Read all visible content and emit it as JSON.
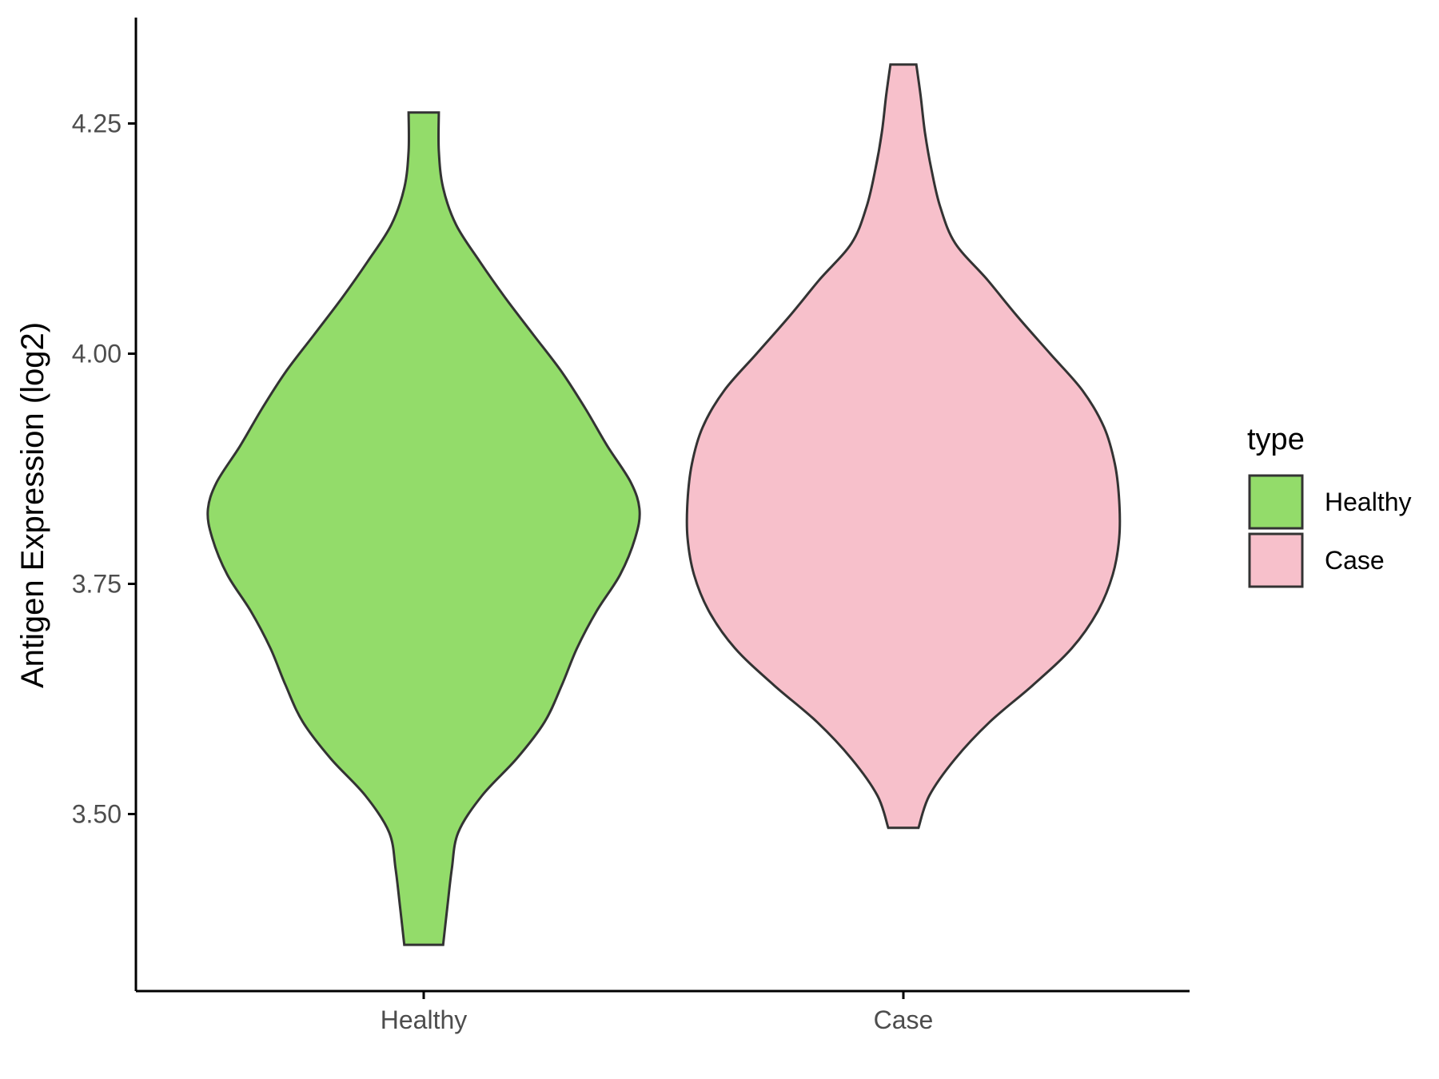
{
  "chart_data": {
    "type": "violin",
    "title": "",
    "xlabel": "",
    "ylabel": "Antigen Expression (log2)",
    "ylim": [
      3.31,
      4.36
    ],
    "yticks": [
      "3.50",
      "3.75",
      "4.00",
      "4.25"
    ],
    "categories": [
      "Healthy",
      "Case"
    ],
    "legend": {
      "title": "type",
      "position": "right",
      "entries": [
        {
          "label": "Healthy",
          "color": "#93dc6a"
        },
        {
          "label": "Case",
          "color": "#f7c0cb"
        }
      ]
    },
    "series": [
      {
        "name": "Healthy",
        "color": "#93dc6a",
        "y_range": [
          3.358,
          4.262
        ],
        "density_profile": [
          [
            3.358,
            0.09
          ],
          [
            3.4,
            0.11
          ],
          [
            3.44,
            0.13
          ],
          [
            3.48,
            0.16
          ],
          [
            3.52,
            0.27
          ],
          [
            3.56,
            0.43
          ],
          [
            3.6,
            0.56
          ],
          [
            3.64,
            0.64
          ],
          [
            3.68,
            0.71
          ],
          [
            3.72,
            0.8
          ],
          [
            3.76,
            0.91
          ],
          [
            3.8,
            0.98
          ],
          [
            3.83,
            1.0
          ],
          [
            3.86,
            0.96
          ],
          [
            3.9,
            0.85
          ],
          [
            3.94,
            0.75
          ],
          [
            3.98,
            0.64
          ],
          [
            4.02,
            0.51
          ],
          [
            4.06,
            0.38
          ],
          [
            4.1,
            0.26
          ],
          [
            4.14,
            0.15
          ],
          [
            4.18,
            0.09
          ],
          [
            4.22,
            0.07
          ],
          [
            4.262,
            0.07
          ]
        ]
      },
      {
        "name": "Case",
        "color": "#f7c0cb",
        "y_range": [
          3.485,
          4.314
        ],
        "density_profile": [
          [
            3.485,
            0.07
          ],
          [
            3.52,
            0.12
          ],
          [
            3.56,
            0.24
          ],
          [
            3.6,
            0.4
          ],
          [
            3.64,
            0.6
          ],
          [
            3.68,
            0.78
          ],
          [
            3.72,
            0.9
          ],
          [
            3.76,
            0.97
          ],
          [
            3.8,
            1.0
          ],
          [
            3.84,
            1.0
          ],
          [
            3.88,
            0.98
          ],
          [
            3.92,
            0.93
          ],
          [
            3.96,
            0.83
          ],
          [
            4.0,
            0.68
          ],
          [
            4.04,
            0.53
          ],
          [
            4.08,
            0.39
          ],
          [
            4.12,
            0.24
          ],
          [
            4.16,
            0.17
          ],
          [
            4.2,
            0.13
          ],
          [
            4.24,
            0.1
          ],
          [
            4.28,
            0.08
          ],
          [
            4.314,
            0.06
          ]
        ]
      }
    ]
  }
}
